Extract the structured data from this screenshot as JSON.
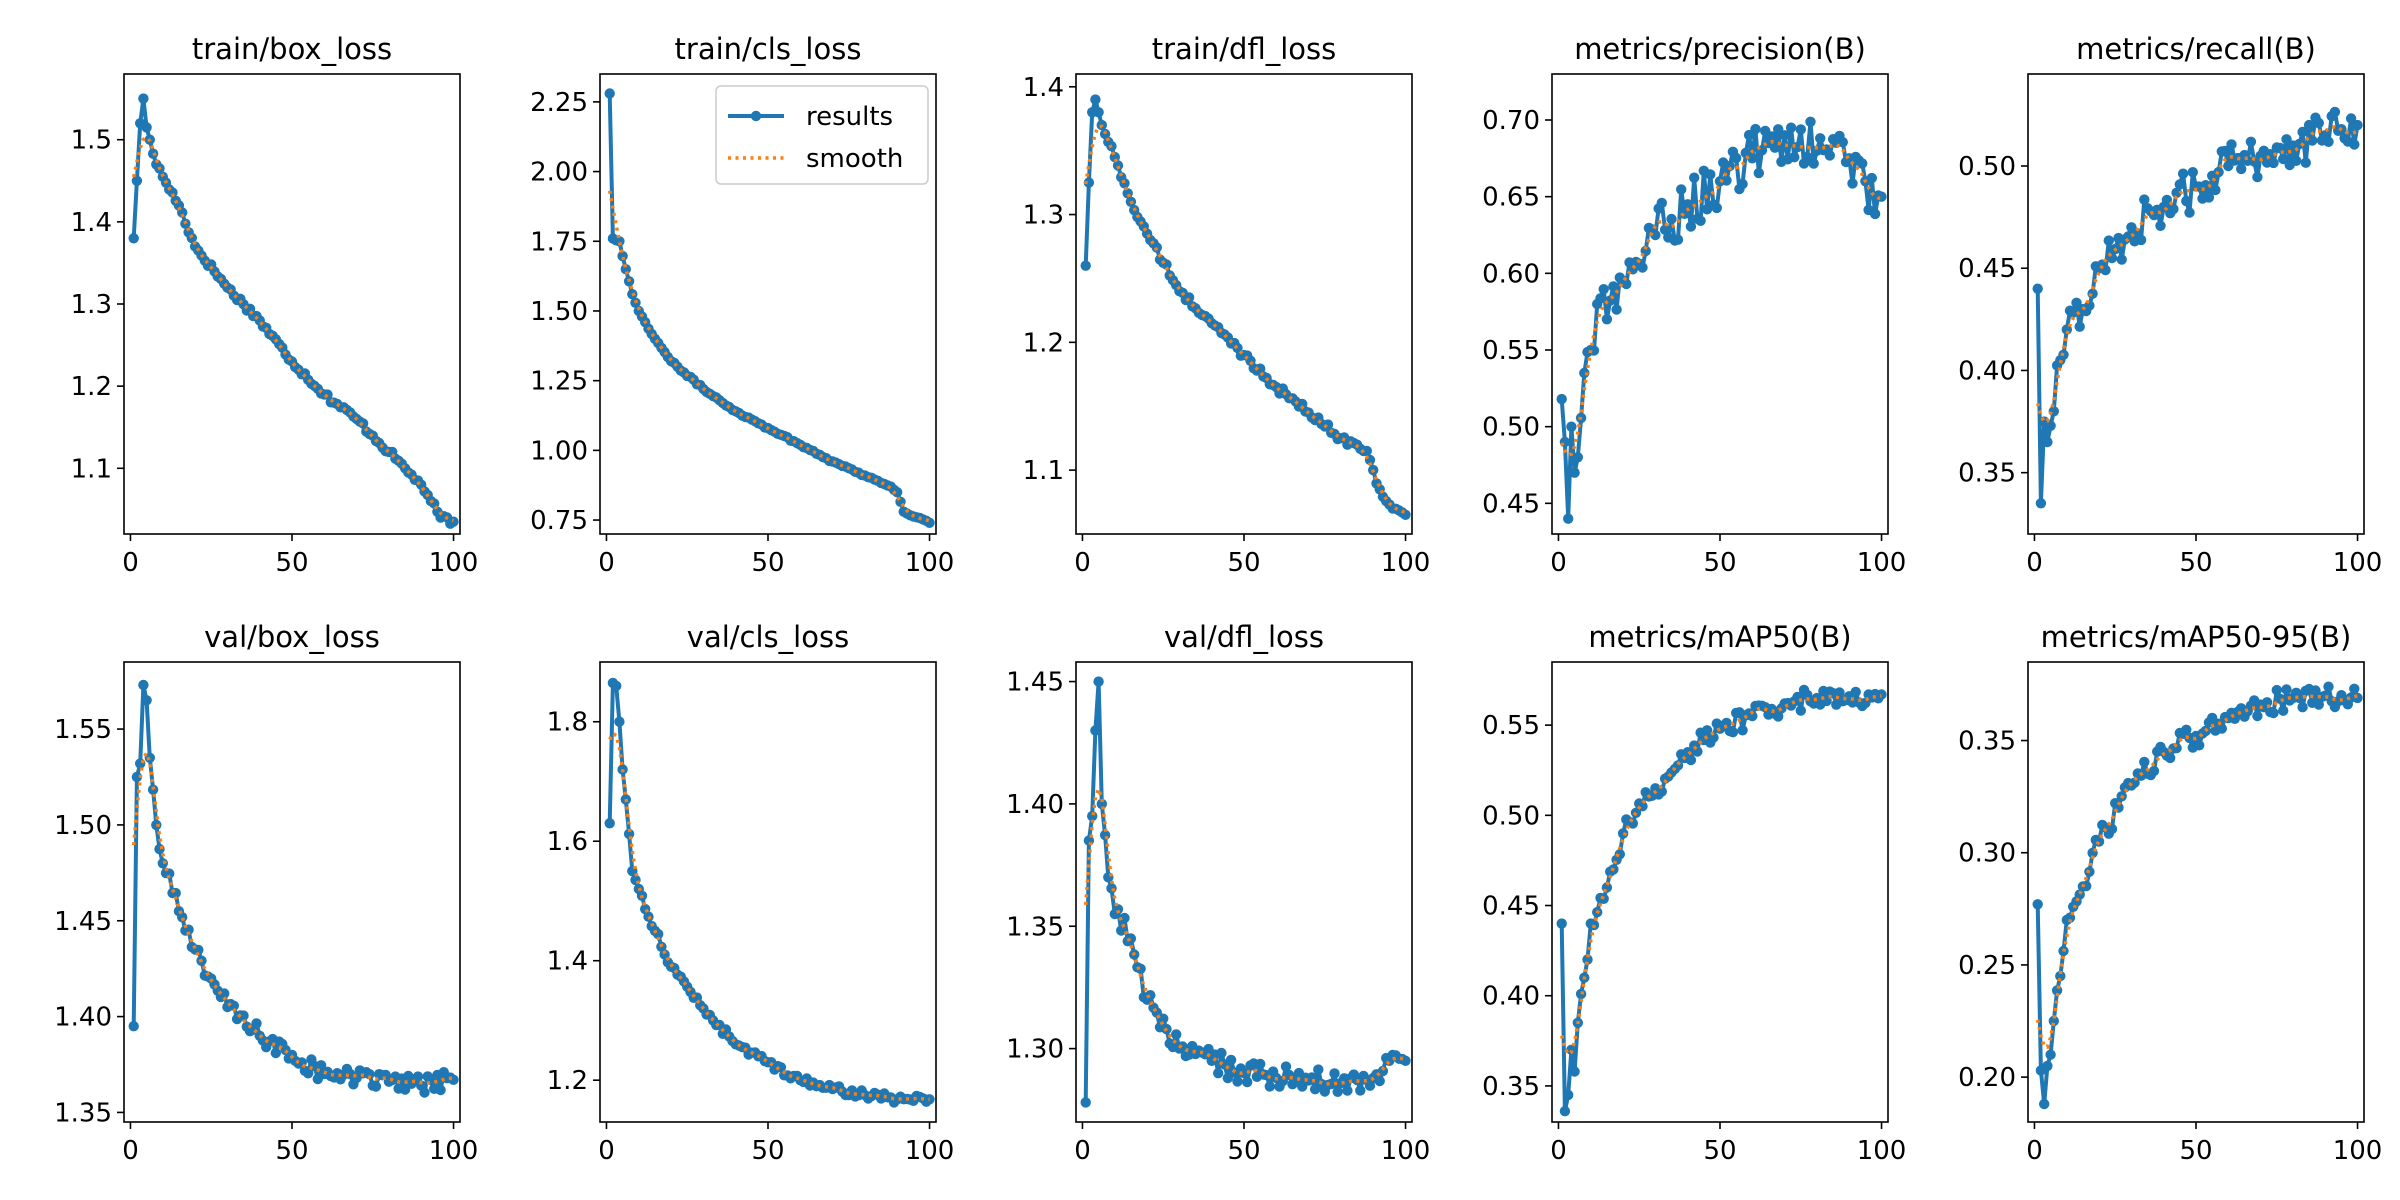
{
  "colors": {
    "results": "#1f77b4",
    "smooth": "#ff7f0e",
    "axes": "#000000",
    "background": "#ffffff"
  },
  "legend": {
    "location": "upper right of train/cls_loss panel",
    "entries": [
      "results",
      "smooth"
    ]
  },
  "chart_data": [
    {
      "type": "line",
      "title": "train/box_loss",
      "xlim": [
        -2,
        102
      ],
      "ylim": [
        1.02,
        1.58
      ],
      "xticks": [
        0,
        50,
        100
      ],
      "xtick_labels": [
        "0",
        "50",
        "100"
      ],
      "yticks": [
        1.1,
        1.2,
        1.3,
        1.4,
        1.5
      ],
      "ytick_labels": [
        "1.1",
        "1.2",
        "1.3",
        "1.4",
        "1.5"
      ],
      "keypoints": [
        [
          1,
          1.38
        ],
        [
          2,
          1.45
        ],
        [
          3,
          1.52
        ],
        [
          4,
          1.55
        ],
        [
          5,
          1.515
        ],
        [
          6,
          1.5
        ],
        [
          8,
          1.47
        ],
        [
          10,
          1.455
        ],
        [
          15,
          1.42
        ],
        [
          20,
          1.37
        ],
        [
          30,
          1.32
        ],
        [
          40,
          1.28
        ],
        [
          50,
          1.23
        ],
        [
          60,
          1.19
        ],
        [
          70,
          1.16
        ],
        [
          80,
          1.12
        ],
        [
          85,
          1.1
        ],
        [
          90,
          1.08
        ],
        [
          93,
          1.06
        ],
        [
          96,
          1.04
        ],
        [
          100,
          1.035
        ]
      ],
      "noise": 0.004,
      "series": [
        {
          "name": "results"
        },
        {
          "name": "smooth"
        }
      ]
    },
    {
      "type": "line",
      "title": "train/cls_loss",
      "xlim": [
        -2,
        102
      ],
      "ylim": [
        0.7,
        2.35
      ],
      "xticks": [
        0,
        50,
        100
      ],
      "xtick_labels": [
        "0",
        "50",
        "100"
      ],
      "yticks": [
        0.75,
        1.0,
        1.25,
        1.5,
        1.75,
        2.0,
        2.25
      ],
      "ytick_labels": [
        "0.75",
        "1.00",
        "1.25",
        "1.50",
        "1.75",
        "2.00",
        "2.25"
      ],
      "keypoints": [
        [
          1,
          2.28
        ],
        [
          2,
          1.76
        ],
        [
          4,
          1.75
        ],
        [
          6,
          1.65
        ],
        [
          8,
          1.56
        ],
        [
          10,
          1.5
        ],
        [
          15,
          1.4
        ],
        [
          20,
          1.32
        ],
        [
          30,
          1.22
        ],
        [
          40,
          1.14
        ],
        [
          50,
          1.08
        ],
        [
          60,
          1.02
        ],
        [
          70,
          0.96
        ],
        [
          80,
          0.91
        ],
        [
          88,
          0.87
        ],
        [
          90,
          0.85
        ],
        [
          92,
          0.78
        ],
        [
          96,
          0.76
        ],
        [
          100,
          0.74
        ]
      ],
      "noise": 0.004,
      "series": [
        {
          "name": "results"
        },
        {
          "name": "smooth"
        }
      ]
    },
    {
      "type": "line",
      "title": "train/dfl_loss",
      "xlim": [
        -2,
        102
      ],
      "ylim": [
        1.05,
        1.41
      ],
      "xticks": [
        0,
        50,
        100
      ],
      "xtick_labels": [
        "0",
        "50",
        "100"
      ],
      "yticks": [
        1.1,
        1.2,
        1.3,
        1.4
      ],
      "ytick_labels": [
        "1.1",
        "1.2",
        "1.3",
        "1.4"
      ],
      "keypoints": [
        [
          1,
          1.26
        ],
        [
          2,
          1.325
        ],
        [
          3,
          1.38
        ],
        [
          4,
          1.39
        ],
        [
          5,
          1.38
        ],
        [
          6,
          1.37
        ],
        [
          10,
          1.345
        ],
        [
          15,
          1.31
        ],
        [
          20,
          1.285
        ],
        [
          30,
          1.24
        ],
        [
          40,
          1.215
        ],
        [
          50,
          1.19
        ],
        [
          60,
          1.165
        ],
        [
          70,
          1.145
        ],
        [
          80,
          1.125
        ],
        [
          88,
          1.115
        ],
        [
          90,
          1.1
        ],
        [
          92,
          1.085
        ],
        [
          96,
          1.07
        ],
        [
          100,
          1.065
        ]
      ],
      "noise": 0.003,
      "series": [
        {
          "name": "results"
        },
        {
          "name": "smooth"
        }
      ]
    },
    {
      "type": "line",
      "title": "metrics/precision(B)",
      "xlim": [
        -2,
        102
      ],
      "ylim": [
        0.43,
        0.73
      ],
      "xticks": [
        0,
        50,
        100
      ],
      "xtick_labels": [
        "0",
        "50",
        "100"
      ],
      "yticks": [
        0.45,
        0.5,
        0.55,
        0.6,
        0.65,
        0.7
      ],
      "ytick_labels": [
        "0.45",
        "0.50",
        "0.55",
        "0.60",
        "0.65",
        "0.70"
      ],
      "keypoints": [
        [
          1,
          0.518
        ],
        [
          2,
          0.49
        ],
        [
          3,
          0.44
        ],
        [
          4,
          0.5
        ],
        [
          5,
          0.47
        ],
        [
          6,
          0.48
        ],
        [
          8,
          0.535
        ],
        [
          10,
          0.55
        ],
        [
          12,
          0.58
        ],
        [
          15,
          0.57
        ],
        [
          20,
          0.595
        ],
        [
          30,
          0.625
        ],
        [
          40,
          0.645
        ],
        [
          50,
          0.66
        ],
        [
          60,
          0.675
        ],
        [
          65,
          0.685
        ],
        [
          70,
          0.69
        ],
        [
          80,
          0.68
        ],
        [
          90,
          0.675
        ],
        [
          95,
          0.66
        ],
        [
          100,
          0.65
        ]
      ],
      "noise": 0.018,
      "series": [
        {
          "name": "results"
        },
        {
          "name": "smooth"
        }
      ]
    },
    {
      "type": "line",
      "title": "metrics/recall(B)",
      "xlim": [
        -2,
        102
      ],
      "ylim": [
        0.32,
        0.545
      ],
      "xticks": [
        0,
        50,
        100
      ],
      "xtick_labels": [
        "0",
        "50",
        "100"
      ],
      "yticks": [
        0.35,
        0.4,
        0.45,
        0.5
      ],
      "ytick_labels": [
        "0.35",
        "0.40",
        "0.45",
        "0.50"
      ],
      "keypoints": [
        [
          1,
          0.44
        ],
        [
          2,
          0.335
        ],
        [
          3,
          0.375
        ],
        [
          4,
          0.365
        ],
        [
          6,
          0.38
        ],
        [
          8,
          0.405
        ],
        [
          10,
          0.42
        ],
        [
          15,
          0.43
        ],
        [
          20,
          0.45
        ],
        [
          30,
          0.47
        ],
        [
          40,
          0.48
        ],
        [
          50,
          0.49
        ],
        [
          60,
          0.5
        ],
        [
          70,
          0.505
        ],
        [
          80,
          0.51
        ],
        [
          90,
          0.515
        ],
        [
          95,
          0.518
        ],
        [
          100,
          0.52
        ]
      ],
      "noise": 0.011,
      "series": [
        {
          "name": "results"
        },
        {
          "name": "smooth"
        }
      ]
    },
    {
      "type": "line",
      "title": "val/box_loss",
      "xlim": [
        -2,
        102
      ],
      "ylim": [
        1.345,
        1.585
      ],
      "xticks": [
        0,
        50,
        100
      ],
      "xtick_labels": [
        "0",
        "50",
        "100"
      ],
      "yticks": [
        1.35,
        1.4,
        1.45,
        1.5,
        1.55
      ],
      "ytick_labels": [
        "1.35",
        "1.40",
        "1.45",
        "1.50",
        "1.55"
      ],
      "keypoints": [
        [
          1,
          1.395
        ],
        [
          2,
          1.525
        ],
        [
          3,
          1.532
        ],
        [
          4,
          1.573
        ],
        [
          5,
          1.565
        ],
        [
          6,
          1.535
        ],
        [
          8,
          1.5
        ],
        [
          10,
          1.48
        ],
        [
          15,
          1.455
        ],
        [
          20,
          1.435
        ],
        [
          30,
          1.405
        ],
        [
          40,
          1.39
        ],
        [
          50,
          1.38
        ],
        [
          60,
          1.37
        ],
        [
          70,
          1.368
        ],
        [
          80,
          1.366
        ],
        [
          90,
          1.364
        ],
        [
          100,
          1.367
        ]
      ],
      "noise": 0.005,
      "series": [
        {
          "name": "results"
        },
        {
          "name": "smooth"
        }
      ]
    },
    {
      "type": "line",
      "title": "val/cls_loss",
      "xlim": [
        -2,
        102
      ],
      "ylim": [
        1.13,
        1.9
      ],
      "xticks": [
        0,
        50,
        100
      ],
      "xtick_labels": [
        "0",
        "50",
        "100"
      ],
      "yticks": [
        1.2,
        1.4,
        1.6,
        1.8
      ],
      "ytick_labels": [
        "1.2",
        "1.4",
        "1.6",
        "1.8"
      ],
      "keypoints": [
        [
          1,
          1.63
        ],
        [
          2,
          1.865
        ],
        [
          3,
          1.86
        ],
        [
          4,
          1.8
        ],
        [
          5,
          1.72
        ],
        [
          6,
          1.67
        ],
        [
          8,
          1.55
        ],
        [
          10,
          1.52
        ],
        [
          15,
          1.45
        ],
        [
          20,
          1.39
        ],
        [
          30,
          1.32
        ],
        [
          40,
          1.26
        ],
        [
          50,
          1.23
        ],
        [
          60,
          1.2
        ],
        [
          70,
          1.185
        ],
        [
          80,
          1.175
        ],
        [
          90,
          1.168
        ],
        [
          100,
          1.168
        ]
      ],
      "noise": 0.007,
      "series": [
        {
          "name": "results"
        },
        {
          "name": "smooth"
        }
      ]
    },
    {
      "type": "line",
      "title": "val/dfl_loss",
      "xlim": [
        -2,
        102
      ],
      "ylim": [
        1.27,
        1.458
      ],
      "xticks": [
        0,
        50,
        100
      ],
      "xtick_labels": [
        "0",
        "50",
        "100"
      ],
      "yticks": [
        1.3,
        1.35,
        1.4,
        1.45
      ],
      "ytick_labels": [
        "1.30",
        "1.35",
        "1.40",
        "1.45"
      ],
      "keypoints": [
        [
          1,
          1.278
        ],
        [
          2,
          1.385
        ],
        [
          3,
          1.395
        ],
        [
          4,
          1.43
        ],
        [
          5,
          1.45
        ],
        [
          6,
          1.4
        ],
        [
          8,
          1.37
        ],
        [
          10,
          1.355
        ],
        [
          15,
          1.345
        ],
        [
          20,
          1.32
        ],
        [
          30,
          1.3
        ],
        [
          40,
          1.295
        ],
        [
          50,
          1.29
        ],
        [
          60,
          1.288
        ],
        [
          70,
          1.287
        ],
        [
          80,
          1.286
        ],
        [
          90,
          1.288
        ],
        [
          95,
          1.295
        ],
        [
          100,
          1.295
        ]
      ],
      "noise": 0.005,
      "series": [
        {
          "name": "results"
        },
        {
          "name": "smooth"
        }
      ]
    },
    {
      "type": "line",
      "title": "metrics/mAP50(B)",
      "xlim": [
        -2,
        102
      ],
      "ylim": [
        0.33,
        0.585
      ],
      "xticks": [
        0,
        50,
        100
      ],
      "xtick_labels": [
        "0",
        "50",
        "100"
      ],
      "yticks": [
        0.35,
        0.4,
        0.45,
        0.5,
        0.55
      ],
      "ytick_labels": [
        "0.35",
        "0.40",
        "0.45",
        "0.50",
        "0.55"
      ],
      "keypoints": [
        [
          1,
          0.44
        ],
        [
          2,
          0.336
        ],
        [
          3,
          0.345
        ],
        [
          4,
          0.37
        ],
        [
          5,
          0.358
        ],
        [
          6,
          0.385
        ],
        [
          8,
          0.41
        ],
        [
          10,
          0.44
        ],
        [
          15,
          0.46
        ],
        [
          20,
          0.49
        ],
        [
          30,
          0.515
        ],
        [
          40,
          0.535
        ],
        [
          50,
          0.548
        ],
        [
          60,
          0.555
        ],
        [
          70,
          0.562
        ],
        [
          80,
          0.565
        ],
        [
          90,
          0.566
        ],
        [
          100,
          0.567
        ]
      ],
      "noise": 0.006,
      "series": [
        {
          "name": "results"
        },
        {
          "name": "smooth"
        }
      ]
    },
    {
      "type": "line",
      "title": "metrics/mAP50-95(B)",
      "xlim": [
        -2,
        102
      ],
      "ylim": [
        0.18,
        0.385
      ],
      "xticks": [
        0,
        50,
        100
      ],
      "xtick_labels": [
        "0",
        "50",
        "100"
      ],
      "yticks": [
        0.2,
        0.25,
        0.3,
        0.35
      ],
      "ytick_labels": [
        "0.20",
        "0.25",
        "0.30",
        "0.35"
      ],
      "keypoints": [
        [
          1,
          0.277
        ],
        [
          2,
          0.203
        ],
        [
          3,
          0.188
        ],
        [
          4,
          0.205
        ],
        [
          5,
          0.21
        ],
        [
          6,
          0.225
        ],
        [
          8,
          0.245
        ],
        [
          10,
          0.27
        ],
        [
          15,
          0.285
        ],
        [
          20,
          0.305
        ],
        [
          30,
          0.33
        ],
        [
          40,
          0.345
        ],
        [
          50,
          0.352
        ],
        [
          60,
          0.36
        ],
        [
          70,
          0.366
        ],
        [
          80,
          0.369
        ],
        [
          90,
          0.37
        ],
        [
          100,
          0.369
        ]
      ],
      "noise": 0.005,
      "series": [
        {
          "name": "results"
        },
        {
          "name": "smooth"
        }
      ]
    }
  ]
}
